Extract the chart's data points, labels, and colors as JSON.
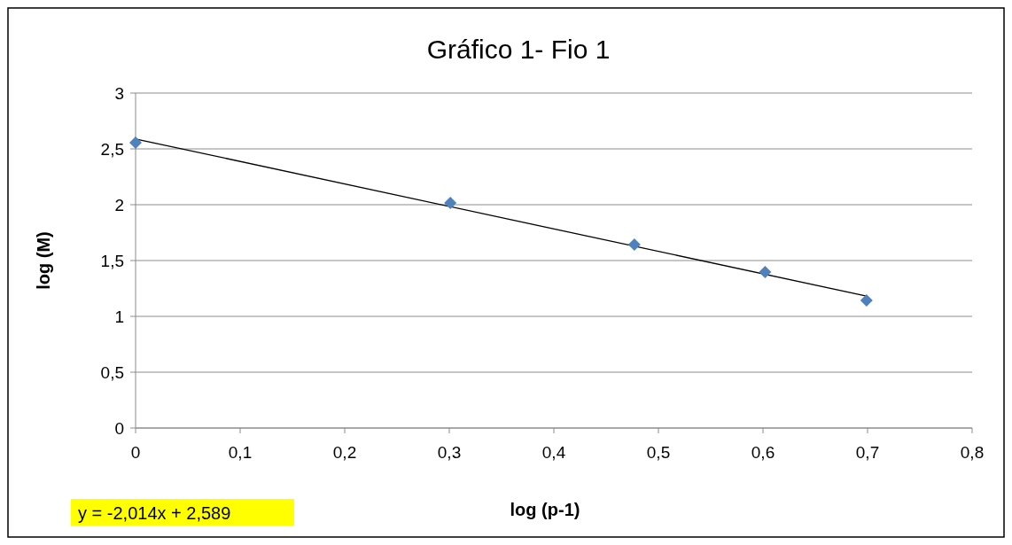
{
  "chart_data": {
    "type": "scatter",
    "title": "Gráfico 1-  Fio 1",
    "xlabel": "log (p-1)",
    "ylabel": "log (M)",
    "series": [
      {
        "color": "#4f81bd",
        "marker": "diamond",
        "x": [
          0,
          0.301,
          0.477,
          0.602,
          0.699
        ],
        "values": [
          2.556,
          2.016,
          1.643,
          1.397,
          1.143
        ]
      },
      {
        "type": "line",
        "color": "#000000",
        "x": [
          0,
          0.699
        ],
        "values": [
          2.589,
          1.181
        ]
      }
    ],
    "xlim": [
      0,
      0.8
    ],
    "xticks": [
      0,
      {
        "value": 0.1,
        "label": "0,1"
      },
      {
        "value": 0.2,
        "label": "0,2"
      },
      {
        "value": 0.3,
        "label": "0,3"
      },
      {
        "value": 0.4,
        "label": "0,4"
      },
      {
        "value": 0.5,
        "label": "0,5"
      },
      {
        "value": 0.6,
        "label": "0,6"
      },
      {
        "value": 0.7,
        "label": "0,7"
      },
      {
        "value": 0.8,
        "label": "0,8"
      }
    ],
    "ylim": [
      0,
      3
    ],
    "yticks": [
      0,
      {
        "value": 0.5,
        "label": "0,5"
      },
      1,
      {
        "value": 1.5,
        "label": "1,5"
      },
      2,
      {
        "value": 2.5,
        "label": "2,5"
      },
      3
    ],
    "grid": "y",
    "annotations": [
      "y = -2,014x + 2,589"
    ]
  }
}
